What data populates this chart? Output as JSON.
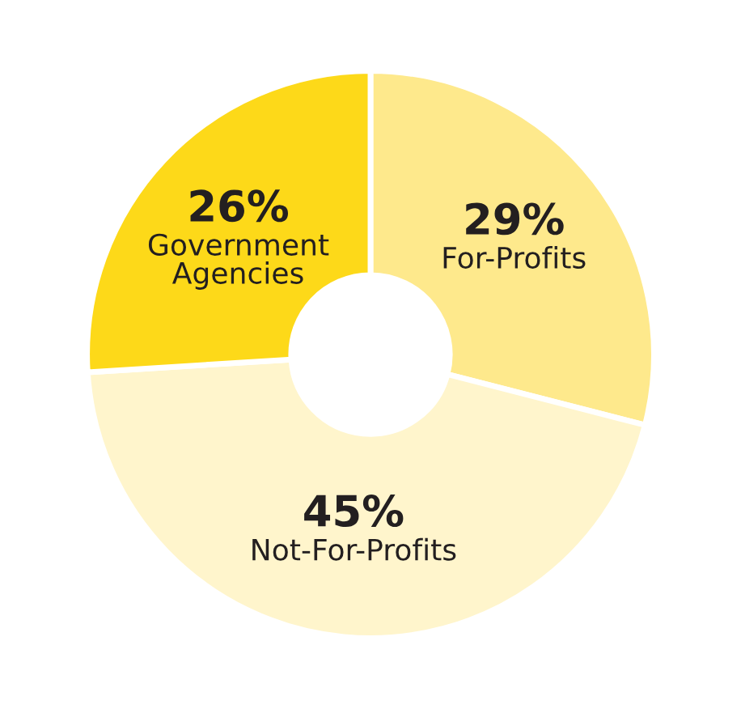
{
  "chart_data": {
    "type": "donut",
    "categories": [
      "For-Profits",
      "Not-For-Profits",
      "Government\nAgencies"
    ],
    "values": [
      29,
      45,
      26
    ],
    "colors": [
      "#fee98c",
      "#fff5cc",
      "#fdd919"
    ],
    "value_labels": [
      "29%",
      "45%",
      "26%"
    ],
    "legend": false
  }
}
